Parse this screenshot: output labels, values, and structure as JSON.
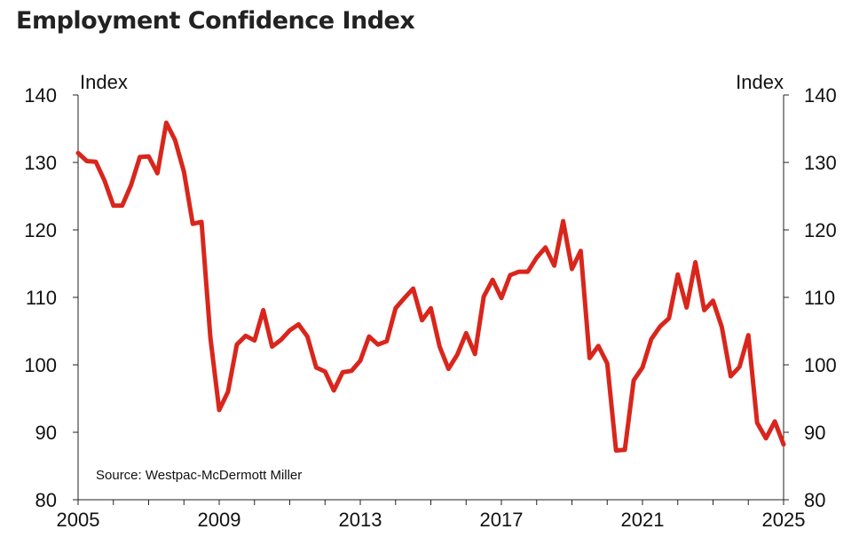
{
  "chart_data": {
    "type": "line",
    "title": "Employment Confidence Index",
    "y_unit_left": "Index",
    "y_unit_right": "Index",
    "source": "Source: Westpac-McDermott Miller",
    "ylim": [
      80,
      140
    ],
    "yticks": [
      80,
      90,
      100,
      110,
      120,
      130,
      140
    ],
    "xlim": [
      2005,
      2025
    ],
    "xticks": [
      2005,
      2009,
      2013,
      2017,
      2021,
      2025
    ],
    "grid": false,
    "line_color": "#d9261c",
    "series": [
      {
        "x": [
          2005.0,
          2005.25,
          2005.5,
          2005.75,
          2006.0,
          2006.25,
          2006.5,
          2006.75,
          2007.0,
          2007.25,
          2007.5,
          2007.75,
          2008.0,
          2008.25,
          2008.5,
          2008.75,
          2009.0,
          2009.25,
          2009.5,
          2009.75,
          2010.0,
          2010.25,
          2010.5,
          2010.75,
          2011.0,
          2011.25,
          2011.5,
          2011.75,
          2012.0,
          2012.25,
          2012.5,
          2012.75,
          2013.0,
          2013.25,
          2013.5,
          2013.75,
          2014.0,
          2014.25,
          2014.5,
          2014.75,
          2015.0,
          2015.25,
          2015.5,
          2015.75,
          2016.0,
          2016.25,
          2016.5,
          2016.75,
          2017.0,
          2017.25,
          2017.5,
          2017.75,
          2018.0,
          2018.25,
          2018.5,
          2018.75,
          2019.0,
          2019.25,
          2019.5,
          2019.75,
          2020.0,
          2020.25,
          2020.5,
          2020.75,
          2021.0,
          2021.25,
          2021.5,
          2021.75,
          2022.0,
          2022.25,
          2022.5,
          2022.75,
          2023.0,
          2023.25,
          2023.5,
          2023.75,
          2024.0,
          2024.25,
          2024.5,
          2024.75,
          2025.0
        ],
        "values": [
          131.4,
          130.2,
          130.1,
          127.3,
          123.6,
          123.6,
          126.6,
          130.8,
          130.9,
          128.4,
          135.9,
          133.3,
          128.6,
          120.9,
          121.2,
          104.0,
          93.3,
          96.0,
          103.0,
          104.3,
          103.6,
          108.1,
          102.7,
          103.7,
          105.1,
          106.0,
          104.2,
          99.6,
          99.0,
          96.2,
          98.9,
          99.1,
          100.6,
          104.2,
          103.0,
          103.5,
          108.4,
          109.9,
          111.3,
          106.6,
          108.4,
          102.7,
          99.4,
          101.5,
          104.7,
          101.6,
          110.1,
          112.6,
          109.9,
          113.3,
          113.8,
          113.8,
          115.9,
          117.4,
          114.7,
          121.3,
          114.2,
          116.9,
          101.0,
          102.8,
          100.2,
          87.3,
          87.4,
          97.7,
          99.6,
          103.8,
          105.7,
          106.9,
          113.4,
          108.5,
          115.2,
          108.1,
          109.5,
          105.6,
          98.3,
          99.7,
          104.4,
          91.4,
          89.1,
          91.6,
          88.2
        ]
      }
    ]
  }
}
